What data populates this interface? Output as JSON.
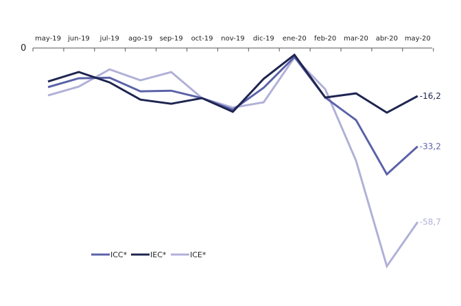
{
  "chart_data": {
    "type": "line",
    "title": "",
    "xlabel": "",
    "ylabel": "",
    "y_zero_label": "0",
    "ylim": [
      -75,
      0
    ],
    "categories": [
      "may-19",
      "jun-19",
      "jul-19",
      "ago-19",
      "sep-19",
      "oct-19",
      "nov-19",
      "dic-19",
      "ene-20",
      "feb-20",
      "mar-20",
      "abr-20",
      "may-20"
    ],
    "series": [
      {
        "name": "ICC*",
        "color": "#5b62a8",
        "end_label": "-33,2",
        "values": [
          -13.2,
          -10.2,
          -10.0,
          -14.6,
          -14.4,
          -16.9,
          -20.8,
          -13.4,
          -3.0,
          -16.7,
          -24.3,
          -42.6,
          -33.2
        ]
      },
      {
        "name": "IEC*",
        "color": "#1e2550",
        "end_label": "-16,2",
        "values": [
          -11.3,
          -8.1,
          -11.6,
          -17.4,
          -18.8,
          -16.9,
          -21.5,
          -10.4,
          -2.3,
          -16.7,
          -15.3,
          -21.8,
          -16.2
        ]
      },
      {
        "name": "ICE*",
        "color": "#b0b0d8",
        "end_label": "-58,7",
        "values": [
          -16.0,
          -13.0,
          -7.2,
          -10.9,
          -8.1,
          -16.9,
          -20.1,
          -18.3,
          -3.2,
          -13.9,
          -38.0,
          -73.6,
          -58.7
        ]
      }
    ],
    "legend_position": "bottom-left",
    "grid": false
  }
}
